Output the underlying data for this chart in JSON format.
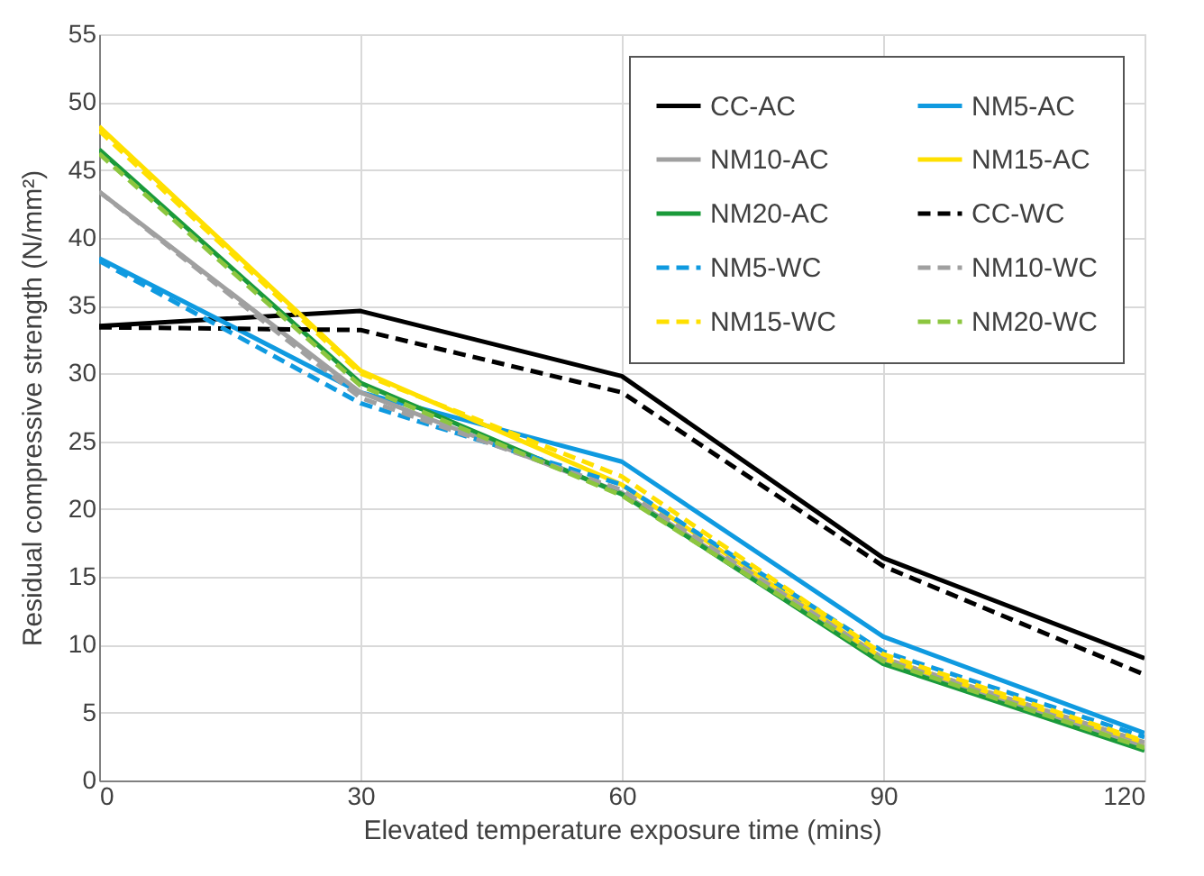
{
  "chart_data": {
    "type": "line",
    "xlabel": "Elevated temperature exposure time (mins)",
    "ylabel": "Residual compressive strength (N/mm²)",
    "x": [
      0,
      30,
      60,
      90,
      120
    ],
    "xlim": [
      0,
      120
    ],
    "xticks": [
      0,
      30,
      60,
      90,
      120
    ],
    "ylim": [
      0,
      55
    ],
    "yticks": [
      0,
      5,
      10,
      15,
      20,
      25,
      30,
      35,
      40,
      45,
      50,
      55
    ],
    "grid": true,
    "legend": "top right",
    "marker": "none",
    "series": [
      {
        "name": "CC-AC",
        "color": "#000000",
        "line_style": "solid",
        "values": [
          33.5,
          34.6,
          29.8,
          16.4,
          9.0
        ]
      },
      {
        "name": "NM5-AC",
        "color": "#0f9ae0",
        "line_style": "solid",
        "values": [
          38.5,
          28.6,
          23.5,
          10.6,
          3.5
        ]
      },
      {
        "name": "NM10-AC",
        "color": "#a0a0a0",
        "line_style": "solid",
        "values": [
          43.4,
          28.6,
          21.2,
          8.8,
          2.5
        ]
      },
      {
        "name": "NM15-AC",
        "color": "#ffe000",
        "line_style": "solid",
        "values": [
          48.2,
          30.2,
          21.8,
          9.0,
          2.8
        ]
      },
      {
        "name": "NM20-AC",
        "color": "#1a9a3a",
        "line_style": "solid",
        "values": [
          46.5,
          29.3,
          21.1,
          8.6,
          2.2
        ]
      },
      {
        "name": "CC-WC",
        "color": "#000000",
        "line_style": "dashed",
        "values": [
          33.4,
          33.2,
          28.6,
          15.8,
          7.8
        ]
      },
      {
        "name": "NM5-WC",
        "color": "#0f9ae0",
        "line_style": "dashed",
        "values": [
          38.3,
          27.8,
          21.8,
          9.5,
          3.2
        ]
      },
      {
        "name": "NM10-WC",
        "color": "#a0a0a0",
        "line_style": "dashed",
        "values": [
          43.4,
          28.2,
          21.4,
          9.0,
          2.8
        ]
      },
      {
        "name": "NM15-WC",
        "color": "#ffe000",
        "line_style": "dashed",
        "values": [
          47.9,
          30.0,
          22.4,
          9.3,
          2.9
        ]
      },
      {
        "name": "NM20-WC",
        "color": "#8cc63f",
        "line_style": "dashed",
        "values": [
          46.2,
          29.1,
          21.0,
          8.8,
          2.4
        ]
      }
    ]
  }
}
